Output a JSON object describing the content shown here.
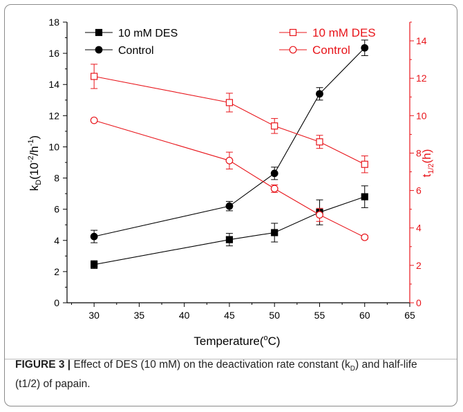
{
  "caption": {
    "label": "FIGURE 3 |",
    "text": " Effect of DES (10 mM) on the deactivation rate constant (k",
    "sub1": "D",
    "text2": ") and half-life (t1/2) of papain."
  },
  "chart_data": {
    "type": "line",
    "x": [
      30,
      45,
      50,
      55,
      60
    ],
    "xlabel": "Temperature(°C)",
    "xlabel_main": "Temperature(",
    "xlabel_sup": "o",
    "xlabel_end": "C)",
    "xlim": [
      27,
      65
    ],
    "xticks": [
      "30",
      "35",
      "40",
      "45",
      "50",
      "55",
      "60",
      "65"
    ],
    "left_axis": {
      "label_main": "k",
      "label_sub": "D",
      "label_mid": "(10",
      "label_sup1": "-2",
      "label_mid2": "/h",
      "label_sup2": "-1",
      "label_end": ")",
      "ylim": [
        0,
        18
      ],
      "ticks": [
        "0",
        "2",
        "4",
        "6",
        "8",
        "10",
        "12",
        "14",
        "16",
        "18"
      ],
      "color": "#000000"
    },
    "right_axis": {
      "label_main": "t",
      "label_sub": "1/2",
      "label_end": "(h)",
      "ylim": [
        0,
        15
      ],
      "ticks": [
        "0",
        "2",
        "4",
        "6",
        "8",
        "10",
        "12",
        "14"
      ],
      "color": "#e8141a"
    },
    "series": [
      {
        "name": "10 mM DES",
        "axis": "left",
        "marker": "square",
        "filled": true,
        "color": "#000000",
        "values": [
          2.45,
          4.05,
          4.5,
          5.8,
          6.8
        ],
        "err": [
          0.25,
          0.4,
          0.6,
          0.8,
          0.7
        ]
      },
      {
        "name": "Control",
        "axis": "left",
        "marker": "circle",
        "filled": true,
        "color": "#000000",
        "values": [
          4.25,
          6.2,
          8.3,
          13.4,
          16.35
        ],
        "err": [
          0.4,
          0.3,
          0.4,
          0.4,
          0.5
        ]
      },
      {
        "name": "10 mM DES",
        "axis": "right",
        "marker": "square",
        "filled": false,
        "color": "#e8141a",
        "values": [
          12.1,
          10.7,
          9.45,
          8.6,
          7.4
        ],
        "err": [
          0.65,
          0.5,
          0.4,
          0.35,
          0.45
        ]
      },
      {
        "name": "Control",
        "axis": "right",
        "marker": "circle",
        "filled": false,
        "color": "#e8141a",
        "values": [
          9.75,
          7.6,
          6.1,
          4.7,
          3.5
        ],
        "err": [
          0.0,
          0.45,
          0.2,
          0.35,
          0.1
        ]
      }
    ]
  }
}
